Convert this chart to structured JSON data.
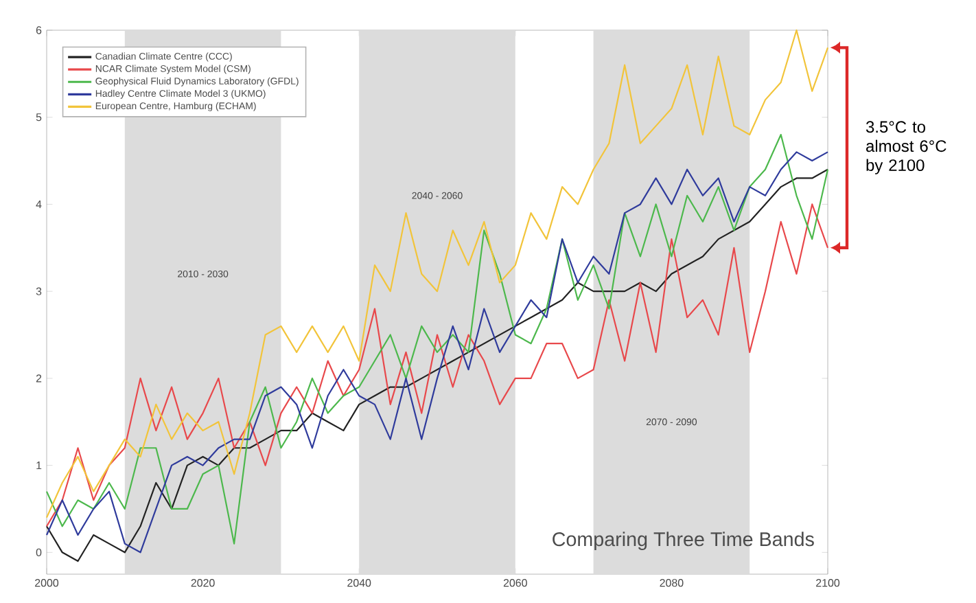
{
  "chart_data": {
    "type": "line",
    "x": [
      2000,
      2002,
      2004,
      2006,
      2008,
      2010,
      2012,
      2014,
      2016,
      2018,
      2020,
      2022,
      2024,
      2026,
      2028,
      2030,
      2032,
      2034,
      2036,
      2038,
      2040,
      2042,
      2044,
      2046,
      2048,
      2050,
      2052,
      2054,
      2056,
      2058,
      2060,
      2062,
      2064,
      2066,
      2068,
      2070,
      2072,
      2074,
      2076,
      2078,
      2080,
      2082,
      2084,
      2086,
      2088,
      2090,
      2092,
      2094,
      2096,
      2098,
      2100
    ],
    "series": [
      {
        "name": "Canadian Climate Centre (CCC)",
        "color": "#222222",
        "values": [
          0.3,
          0.0,
          -0.1,
          0.2,
          0.1,
          0.0,
          0.3,
          0.8,
          0.5,
          1.0,
          1.1,
          1.0,
          1.2,
          1.2,
          1.3,
          1.4,
          1.4,
          1.6,
          1.5,
          1.4,
          1.7,
          1.8,
          1.9,
          1.9,
          2.0,
          2.1,
          2.2,
          2.3,
          2.4,
          2.5,
          2.6,
          2.7,
          2.8,
          2.9,
          3.1,
          3.0,
          3.0,
          3.0,
          3.1,
          3.0,
          3.2,
          3.3,
          3.4,
          3.6,
          3.7,
          3.8,
          4.0,
          4.2,
          4.3,
          4.3,
          4.4
        ]
      },
      {
        "name": "NCAR Climate System Model (CSM)",
        "color": "#e8484b",
        "values": [
          0.3,
          0.6,
          1.2,
          0.6,
          1.0,
          1.2,
          2.0,
          1.4,
          1.9,
          1.3,
          1.6,
          2.0,
          1.2,
          1.5,
          1.0,
          1.6,
          1.9,
          1.6,
          2.2,
          1.8,
          2.1,
          2.8,
          1.7,
          2.3,
          1.6,
          2.5,
          1.9,
          2.5,
          2.2,
          1.7,
          2.0,
          2.0,
          2.4,
          2.4,
          2.0,
          2.1,
          2.9,
          2.2,
          3.1,
          2.3,
          3.6,
          2.7,
          2.9,
          2.5,
          3.5,
          2.3,
          3.0,
          3.8,
          3.2,
          4.0,
          3.5
        ]
      },
      {
        "name": "Geophysical Fluid Dynamics Laboratory (GFDL)",
        "color": "#4cb84c",
        "values": [
          0.7,
          0.3,
          0.6,
          0.5,
          0.8,
          0.5,
          1.2,
          1.2,
          0.5,
          0.5,
          0.9,
          1.0,
          0.1,
          1.5,
          1.9,
          1.2,
          1.5,
          2.0,
          1.6,
          1.8,
          1.9,
          2.2,
          2.5,
          2.0,
          2.6,
          2.3,
          2.5,
          2.3,
          3.7,
          3.2,
          2.5,
          2.4,
          2.8,
          3.6,
          2.9,
          3.3,
          2.8,
          3.9,
          3.4,
          4.0,
          3.4,
          4.1,
          3.8,
          4.2,
          3.7,
          4.2,
          4.4,
          4.8,
          4.1,
          3.6,
          4.4
        ]
      },
      {
        "name": "Hadley Centre Climate Model 3 (UKMO)",
        "color": "#2f3b9c",
        "values": [
          0.2,
          0.6,
          0.2,
          0.5,
          0.7,
          0.1,
          0.0,
          0.5,
          1.0,
          1.1,
          1.0,
          1.2,
          1.3,
          1.3,
          1.8,
          1.9,
          1.7,
          1.2,
          1.8,
          2.1,
          1.8,
          1.7,
          1.3,
          2.0,
          1.3,
          2.0,
          2.6,
          2.1,
          2.8,
          2.3,
          2.6,
          2.9,
          2.7,
          3.6,
          3.1,
          3.4,
          3.2,
          3.9,
          4.0,
          4.3,
          4.0,
          4.4,
          4.1,
          4.3,
          3.8,
          4.2,
          4.1,
          4.4,
          4.6,
          4.5,
          4.6
        ]
      },
      {
        "name": "European Centre, Hamburg (ECHAM)",
        "color": "#f2c43a",
        "values": [
          0.4,
          0.8,
          1.1,
          0.7,
          1.0,
          1.3,
          1.1,
          1.7,
          1.3,
          1.6,
          1.4,
          1.5,
          0.9,
          1.6,
          2.5,
          2.6,
          2.3,
          2.6,
          2.3,
          2.6,
          2.2,
          3.3,
          3.0,
          3.9,
          3.2,
          3.0,
          3.7,
          3.3,
          3.8,
          3.1,
          3.3,
          3.9,
          3.6,
          4.2,
          4.0,
          4.4,
          4.7,
          5.6,
          4.7,
          4.9,
          5.1,
          5.6,
          4.8,
          5.7,
          4.9,
          4.8,
          5.2,
          5.4,
          6.0,
          5.3,
          5.8
        ]
      }
    ],
    "xlim": [
      2000,
      2100
    ],
    "ylim": [
      -0.25,
      6
    ],
    "xticks": [
      2000,
      2020,
      2040,
      2060,
      2080,
      2100
    ],
    "yticks": [
      0,
      1,
      2,
      3,
      4,
      5,
      6
    ],
    "bands": [
      {
        "axis": "x",
        "from": 2010,
        "to": 2030,
        "label": "2010 - 2030",
        "color": "#dcdcdc"
      },
      {
        "axis": "x",
        "from": 2040,
        "to": 2060,
        "label": "2040 - 2060",
        "color": "#dcdcdc"
      },
      {
        "axis": "x",
        "from": 2070,
        "to": 2090,
        "label": "2070 - 2090",
        "color": "#dcdcdc"
      }
    ],
    "annotations": [
      "Comparing Three Time Bands",
      "3.5°C to almost 6°C by 2100"
    ],
    "legend": "top left",
    "grid": false,
    "line_style": "solid",
    "marker": "none"
  }
}
